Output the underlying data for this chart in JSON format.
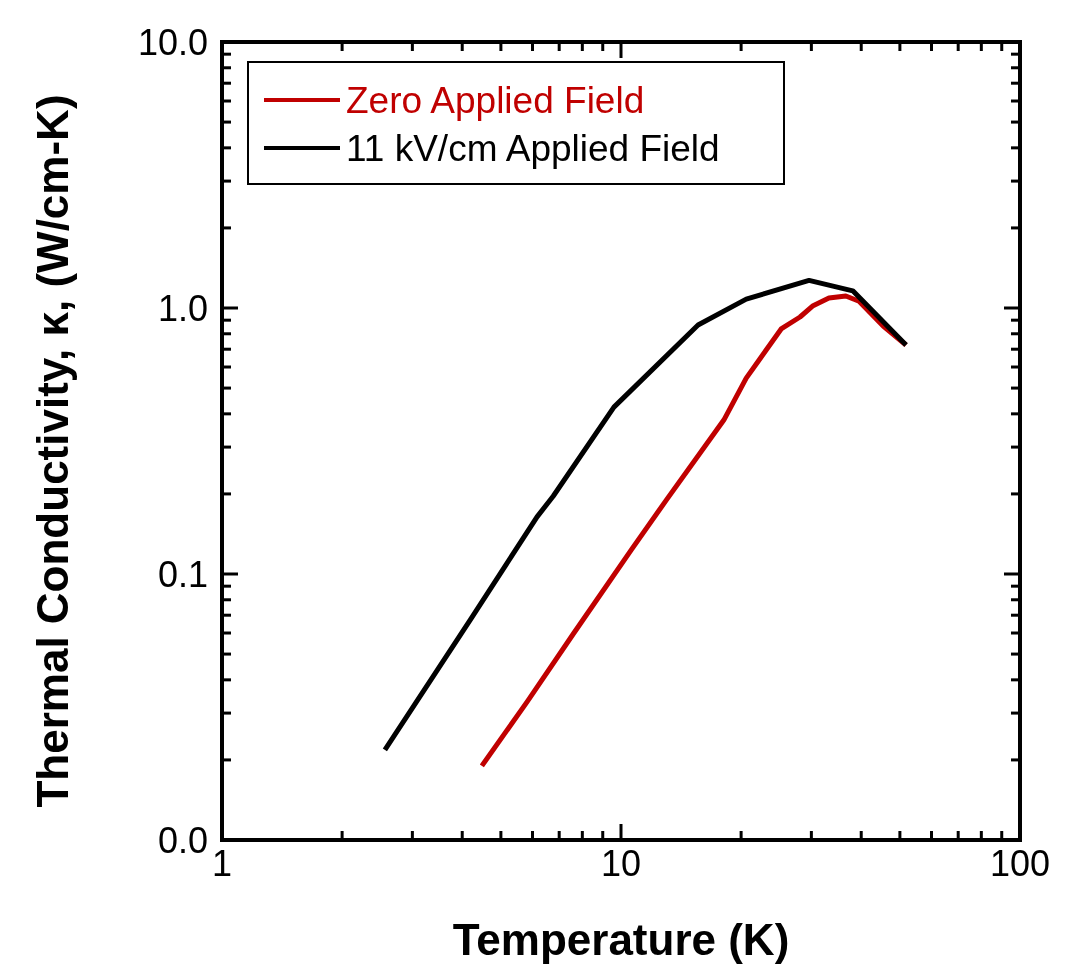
{
  "chart_data": {
    "type": "line",
    "xlabel": "Temperature (K)",
    "ylabel": "Thermal Conductivity, κ, (W/cm-K)",
    "log": "xy",
    "xlim": [
      1,
      100
    ],
    "ylim": [
      0.01,
      10
    ],
    "xticks": [
      1,
      {
        "value": 2,
        "label": null
      },
      {
        "value": 3,
        "label": null
      },
      {
        "value": 4,
        "label": null
      },
      {
        "value": 5,
        "label": null
      },
      {
        "value": 6,
        "label": null
      },
      {
        "value": 7,
        "label": null
      },
      {
        "value": 8,
        "label": null
      },
      {
        "value": 9,
        "label": null
      },
      10,
      {
        "value": 20,
        "label": null
      },
      {
        "value": 30,
        "label": null
      },
      {
        "value": 40,
        "label": null
      },
      {
        "value": 50,
        "label": null
      },
      {
        "value": 60,
        "label": null
      },
      {
        "value": 70,
        "label": null
      },
      {
        "value": 80,
        "label": null
      },
      {
        "value": 90,
        "label": null
      },
      100
    ],
    "yticks": [
      {
        "value": 0.01,
        "label": "0.0"
      },
      {
        "value": 0.02,
        "label": null
      },
      {
        "value": 0.03,
        "label": null
      },
      {
        "value": 0.04,
        "label": null
      },
      {
        "value": 0.05,
        "label": null
      },
      {
        "value": 0.06,
        "label": null
      },
      {
        "value": 0.07,
        "label": null
      },
      {
        "value": 0.08,
        "label": null
      },
      {
        "value": 0.09,
        "label": null
      },
      0.1,
      {
        "value": 0.2,
        "label": null
      },
      {
        "value": 0.3,
        "label": null
      },
      {
        "value": 0.4,
        "label": null
      },
      {
        "value": 0.5,
        "label": null
      },
      {
        "value": 0.6,
        "label": null
      },
      {
        "value": 0.7,
        "label": null
      },
      {
        "value": 0.8,
        "label": null
      },
      {
        "value": 0.9,
        "label": null
      },
      {
        "value": 1,
        "label": "1.0"
      },
      {
        "value": 2,
        "label": null
      },
      {
        "value": 3,
        "label": null
      },
      {
        "value": 4,
        "label": null
      },
      {
        "value": 5,
        "label": null
      },
      {
        "value": 6,
        "label": null
      },
      {
        "value": 7,
        "label": null
      },
      {
        "value": 8,
        "label": null
      },
      {
        "value": 9,
        "label": null
      },
      {
        "value": 10,
        "label": "10.0"
      }
    ],
    "grid": false,
    "legend": "top left",
    "line_style": "solid",
    "series": [
      {
        "name": "Zero Applied Field",
        "color": "#c00000",
        "x": [
          4.48,
          5.81,
          7.62,
          10.6,
          13.0,
          18.1,
          20.6,
          25.2,
          28.1,
          30.3,
          33.2,
          36.6,
          39.5,
          45.4,
          51.8
        ],
        "values": [
          0.019,
          0.033,
          0.06,
          0.123,
          0.19,
          0.379,
          0.545,
          0.834,
          0.925,
          1.02,
          1.09,
          1.11,
          1.06,
          0.855,
          0.726
        ]
      },
      {
        "name": "11 kV/cm Applied Field",
        "color": "#000000",
        "x": [
          2.56,
          4.19,
          6.16,
          6.76,
          9.6,
          15.6,
          20.6,
          29.6,
          38.1,
          51.8
        ],
        "values": [
          0.0218,
          0.0672,
          0.164,
          0.196,
          0.424,
          0.863,
          1.08,
          1.27,
          1.16,
          0.726
        ]
      }
    ]
  }
}
